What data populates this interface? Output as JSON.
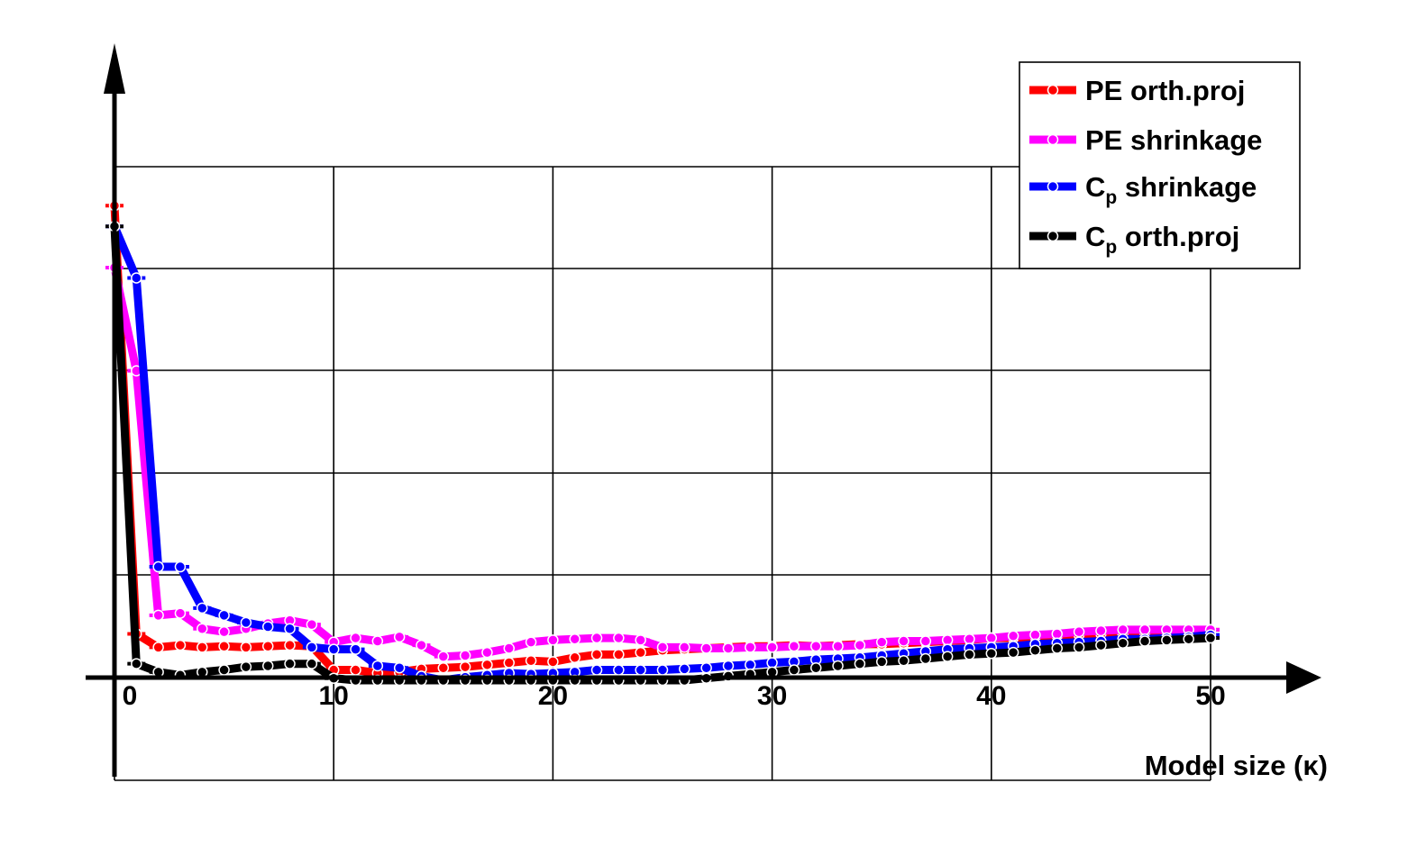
{
  "chart_data": {
    "type": "line",
    "title": "",
    "xlabel": "Model size (κ)",
    "ylabel": "",
    "xlim": [
      0,
      50
    ],
    "ylim": [
      0,
      5.3
    ],
    "xticks": [
      "0",
      "10",
      "20",
      "30",
      "40",
      "50"
    ],
    "grid": true,
    "legend_position": "top-right",
    "x": [
      0,
      1,
      2,
      3,
      4,
      5,
      6,
      7,
      8,
      9,
      10,
      11,
      12,
      13,
      14,
      15,
      16,
      17,
      18,
      19,
      20,
      21,
      22,
      23,
      24,
      25,
      26,
      27,
      28,
      29,
      30,
      31,
      32,
      33,
      34,
      35,
      36,
      37,
      38,
      39,
      40,
      41,
      42,
      43,
      44,
      45,
      46,
      47,
      48,
      49,
      50
    ],
    "series": [
      {
        "name": "PE orth.proj",
        "name_sub": "",
        "name_rest": "",
        "color": "#ff0000",
        "values": [
          4.6,
          0.45,
          0.32,
          0.34,
          0.32,
          0.33,
          0.32,
          0.33,
          0.34,
          0.33,
          0.1,
          0.1,
          0.07,
          0.08,
          0.11,
          0.12,
          0.13,
          0.15,
          0.17,
          0.19,
          0.18,
          0.22,
          0.25,
          0.25,
          0.27,
          0.29,
          0.3,
          0.31,
          0.32,
          0.33,
          0.33,
          0.34,
          0.33,
          0.34,
          0.35,
          0.35,
          0.36,
          0.37,
          0.38,
          0.39,
          0.41,
          0.41,
          0.42,
          0.43,
          0.44,
          0.45,
          0.45,
          0.46,
          0.47,
          0.47,
          0.49
        ]
      },
      {
        "name": "PE shrinkage",
        "name_sub": "",
        "name_rest": "",
        "color": "#ff00ff",
        "values": [
          4.0,
          3.0,
          0.63,
          0.65,
          0.5,
          0.47,
          0.5,
          0.55,
          0.58,
          0.54,
          0.37,
          0.41,
          0.38,
          0.42,
          0.34,
          0.23,
          0.24,
          0.27,
          0.31,
          0.37,
          0.39,
          0.4,
          0.41,
          0.41,
          0.39,
          0.32,
          0.32,
          0.31,
          0.31,
          0.32,
          0.32,
          0.33,
          0.33,
          0.33,
          0.34,
          0.37,
          0.38,
          0.38,
          0.39,
          0.4,
          0.41,
          0.43,
          0.44,
          0.45,
          0.47,
          0.48,
          0.49,
          0.49,
          0.49,
          0.49,
          0.49
        ]
      },
      {
        "name": "C",
        "name_sub": "p",
        "name_rest": " shrinkage",
        "color": "#0000ff",
        "values": [
          4.4,
          3.9,
          1.1,
          1.1,
          0.7,
          0.63,
          0.56,
          0.52,
          0.5,
          0.32,
          0.3,
          0.3,
          0.14,
          0.12,
          0.04,
          0.0,
          0.03,
          0.05,
          0.07,
          0.06,
          0.07,
          0.08,
          0.1,
          0.1,
          0.1,
          0.1,
          0.11,
          0.12,
          0.14,
          0.15,
          0.17,
          0.18,
          0.2,
          0.21,
          0.22,
          0.24,
          0.26,
          0.28,
          0.3,
          0.31,
          0.32,
          0.33,
          0.35,
          0.36,
          0.37,
          0.38,
          0.4,
          0.4,
          0.41,
          0.42,
          0.44
        ]
      },
      {
        "name": "C",
        "name_sub": "p",
        "name_rest": " orth.proj",
        "color": "#000000",
        "values": [
          4.4,
          0.16,
          0.08,
          0.05,
          0.08,
          0.1,
          0.13,
          0.14,
          0.16,
          0.16,
          0.02,
          0.0,
          0.0,
          0.0,
          0.0,
          0.0,
          0.0,
          0.0,
          0.0,
          0.0,
          0.0,
          0.0,
          0.0,
          0.0,
          0.0,
          0.0,
          0.0,
          0.02,
          0.04,
          0.06,
          0.08,
          0.1,
          0.12,
          0.14,
          0.16,
          0.18,
          0.19,
          0.21,
          0.23,
          0.25,
          0.26,
          0.27,
          0.29,
          0.31,
          0.32,
          0.34,
          0.36,
          0.38,
          0.39,
          0.4,
          0.41
        ]
      }
    ]
  }
}
